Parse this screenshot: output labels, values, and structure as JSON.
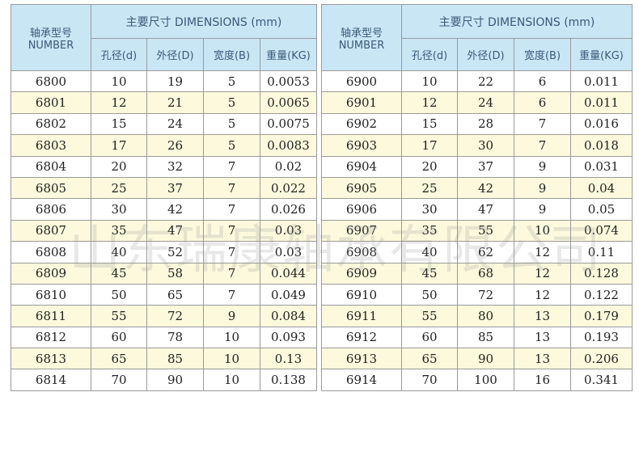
{
  "header": {
    "number_cn": "轴承型号",
    "number_en": "NUMBER",
    "dimensions": "主要尺寸 DIMENSIONS (mm)",
    "cols": [
      "孔径(d)",
      "外径(D)",
      "宽度(B)",
      "重量(KG)"
    ]
  },
  "tables": [
    {
      "rows": [
        [
          "6800",
          "10",
          "19",
          "5",
          "0.0053"
        ],
        [
          "6801",
          "12",
          "21",
          "5",
          "0.0065"
        ],
        [
          "6802",
          "15",
          "24",
          "5",
          "0.0075"
        ],
        [
          "6803",
          "17",
          "26",
          "5",
          "0.0083"
        ],
        [
          "6804",
          "20",
          "32",
          "7",
          "0.02"
        ],
        [
          "6805",
          "25",
          "37",
          "7",
          "0.022"
        ],
        [
          "6806",
          "30",
          "42",
          "7",
          "0.026"
        ],
        [
          "6807",
          "35",
          "47",
          "7",
          "0.03"
        ],
        [
          "6808",
          "40",
          "52",
          "7",
          "0.03"
        ],
        [
          "6809",
          "45",
          "58",
          "7",
          "0.044"
        ],
        [
          "6810",
          "50",
          "65",
          "7",
          "0.049"
        ],
        [
          "6811",
          "55",
          "72",
          "9",
          "0.084"
        ],
        [
          "6812",
          "60",
          "78",
          "10",
          "0.093"
        ],
        [
          "6813",
          "65",
          "85",
          "10",
          "0.13"
        ],
        [
          "6814",
          "70",
          "90",
          "10",
          "0.138"
        ]
      ]
    },
    {
      "rows": [
        [
          "6900",
          "10",
          "22",
          "6",
          "0.011"
        ],
        [
          "6901",
          "12",
          "24",
          "6",
          "0.011"
        ],
        [
          "6902",
          "15",
          "28",
          "7",
          "0.016"
        ],
        [
          "6903",
          "17",
          "30",
          "7",
          "0.018"
        ],
        [
          "6904",
          "20",
          "37",
          "9",
          "0.031"
        ],
        [
          "6905",
          "25",
          "42",
          "9",
          "0.04"
        ],
        [
          "6906",
          "30",
          "47",
          "9",
          "0.05"
        ],
        [
          "6907",
          "35",
          "55",
          "10",
          "0.074"
        ],
        [
          "6908",
          "40",
          "62",
          "12",
          "0.11"
        ],
        [
          "6909",
          "45",
          "68",
          "12",
          "0.128"
        ],
        [
          "6910",
          "50",
          "72",
          "12",
          "0.122"
        ],
        [
          "6911",
          "55",
          "80",
          "13",
          "0.179"
        ],
        [
          "6912",
          "60",
          "85",
          "13",
          "0.193"
        ],
        [
          "6913",
          "65",
          "90",
          "13",
          "0.206"
        ],
        [
          "6914",
          "70",
          "100",
          "16",
          "0.341"
        ]
      ]
    }
  ],
  "watermark": "山东瑞康轴承有限公司"
}
